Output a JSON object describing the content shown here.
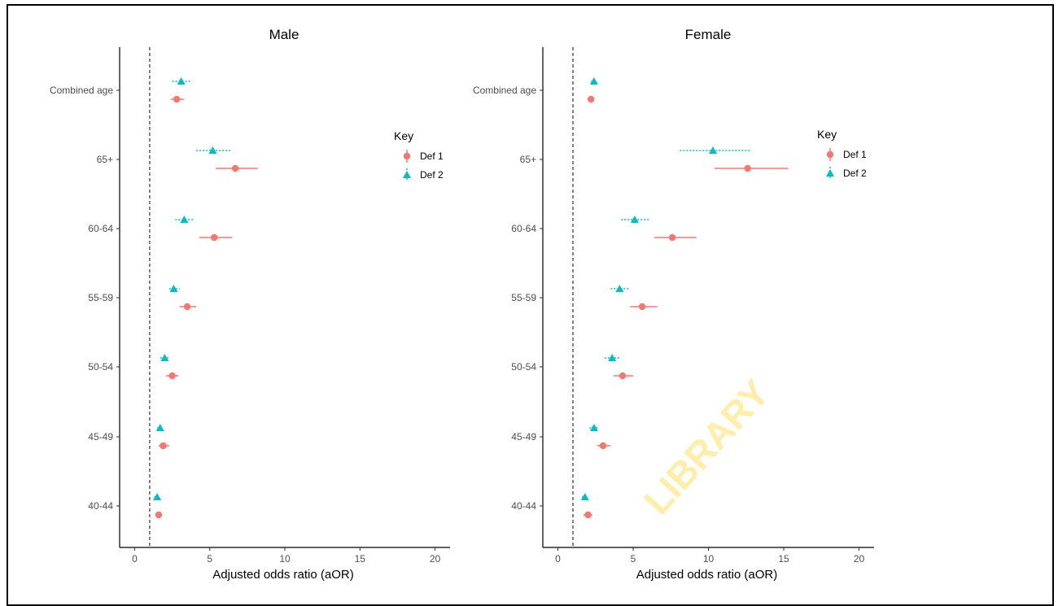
{
  "watermark": "LIBRARY",
  "legend": {
    "title": "Key",
    "items": [
      {
        "label": "Def 1",
        "color": "#F8766D",
        "shape": "circle"
      },
      {
        "label": "Def 2",
        "color": "#00BFC4",
        "shape": "triangle"
      }
    ]
  },
  "chart_data": [
    {
      "type": "forest",
      "title": "Male",
      "xlabel": "Adjusted odds ratio (aOR)",
      "ylabel": "",
      "xlim": [
        -1,
        21
      ],
      "xticks": [
        0,
        5,
        10,
        15,
        20
      ],
      "reference_line": 1,
      "categories": [
        "Combined age",
        "65+",
        "60-64",
        "55-59",
        "50-54",
        "45-49",
        "40-44"
      ],
      "series": [
        {
          "name": "Def 1",
          "color": "#F8766D",
          "shape": "circle",
          "points": [
            {
              "category": "Combined age",
              "value": 2.8,
              "lower": 2.4,
              "upper": 3.3
            },
            {
              "category": "65+",
              "value": 6.7,
              "lower": 5.4,
              "upper": 8.2
            },
            {
              "category": "60-64",
              "value": 5.3,
              "lower": 4.3,
              "upper": 6.5
            },
            {
              "category": "55-59",
              "value": 3.5,
              "lower": 3.0,
              "upper": 4.1
            },
            {
              "category": "50-54",
              "value": 2.5,
              "lower": 2.1,
              "upper": 2.9
            },
            {
              "category": "45-49",
              "value": 1.9,
              "lower": 1.6,
              "upper": 2.3
            },
            {
              "category": "40-44",
              "value": 1.6,
              "lower": 1.4,
              "upper": 1.8
            }
          ]
        },
        {
          "name": "Def 2",
          "color": "#00BFC4",
          "shape": "triangle",
          "points": [
            {
              "category": "Combined age",
              "value": 3.1,
              "lower": 2.5,
              "upper": 3.8
            },
            {
              "category": "65+",
              "value": 5.2,
              "lower": 4.1,
              "upper": 6.4
            },
            {
              "category": "60-64",
              "value": 3.3,
              "lower": 2.7,
              "upper": 4.0
            },
            {
              "category": "55-59",
              "value": 2.6,
              "lower": 2.3,
              "upper": 3.0
            },
            {
              "category": "50-54",
              "value": 2.0,
              "lower": 1.7,
              "upper": 2.3
            },
            {
              "category": "45-49",
              "value": 1.7,
              "lower": 1.5,
              "upper": 1.9
            },
            {
              "category": "40-44",
              "value": 1.5,
              "lower": 1.3,
              "upper": 1.7
            }
          ]
        }
      ]
    },
    {
      "type": "forest",
      "title": "Female",
      "xlabel": "Adjusted odds ratio (aOR)",
      "ylabel": "",
      "xlim": [
        -1,
        21
      ],
      "xticks": [
        0,
        5,
        10,
        15,
        20
      ],
      "reference_line": 1,
      "categories": [
        "Combined age",
        "65+",
        "60-64",
        "55-59",
        "50-54",
        "45-49",
        "40-44"
      ],
      "series": [
        {
          "name": "Def 1",
          "color": "#F8766D",
          "shape": "circle",
          "points": [
            {
              "category": "Combined age",
              "value": 2.2,
              "lower": 2.0,
              "upper": 2.4
            },
            {
              "category": "65+",
              "value": 12.6,
              "lower": 10.4,
              "upper": 15.3
            },
            {
              "category": "60-64",
              "value": 7.6,
              "lower": 6.4,
              "upper": 9.2
            },
            {
              "category": "55-59",
              "value": 5.6,
              "lower": 4.8,
              "upper": 6.6
            },
            {
              "category": "50-54",
              "value": 4.3,
              "lower": 3.7,
              "upper": 5.0
            },
            {
              "category": "45-49",
              "value": 3.0,
              "lower": 2.6,
              "upper": 3.5
            },
            {
              "category": "40-44",
              "value": 2.0,
              "lower": 1.7,
              "upper": 2.3
            }
          ]
        },
        {
          "name": "Def 2",
          "color": "#00BFC4",
          "shape": "triangle",
          "points": [
            {
              "category": "Combined age",
              "value": 2.4,
              "lower": 2.2,
              "upper": 2.6
            },
            {
              "category": "65+",
              "value": 10.3,
              "lower": 8.1,
              "upper": 12.8
            },
            {
              "category": "60-64",
              "value": 5.1,
              "lower": 4.2,
              "upper": 6.1
            },
            {
              "category": "55-59",
              "value": 4.1,
              "lower": 3.5,
              "upper": 4.8
            },
            {
              "category": "50-54",
              "value": 3.6,
              "lower": 3.1,
              "upper": 4.1
            },
            {
              "category": "45-49",
              "value": 2.4,
              "lower": 2.1,
              "upper": 2.7
            },
            {
              "category": "40-44",
              "value": 1.8,
              "lower": 1.6,
              "upper": 2.0
            }
          ]
        }
      ]
    }
  ]
}
